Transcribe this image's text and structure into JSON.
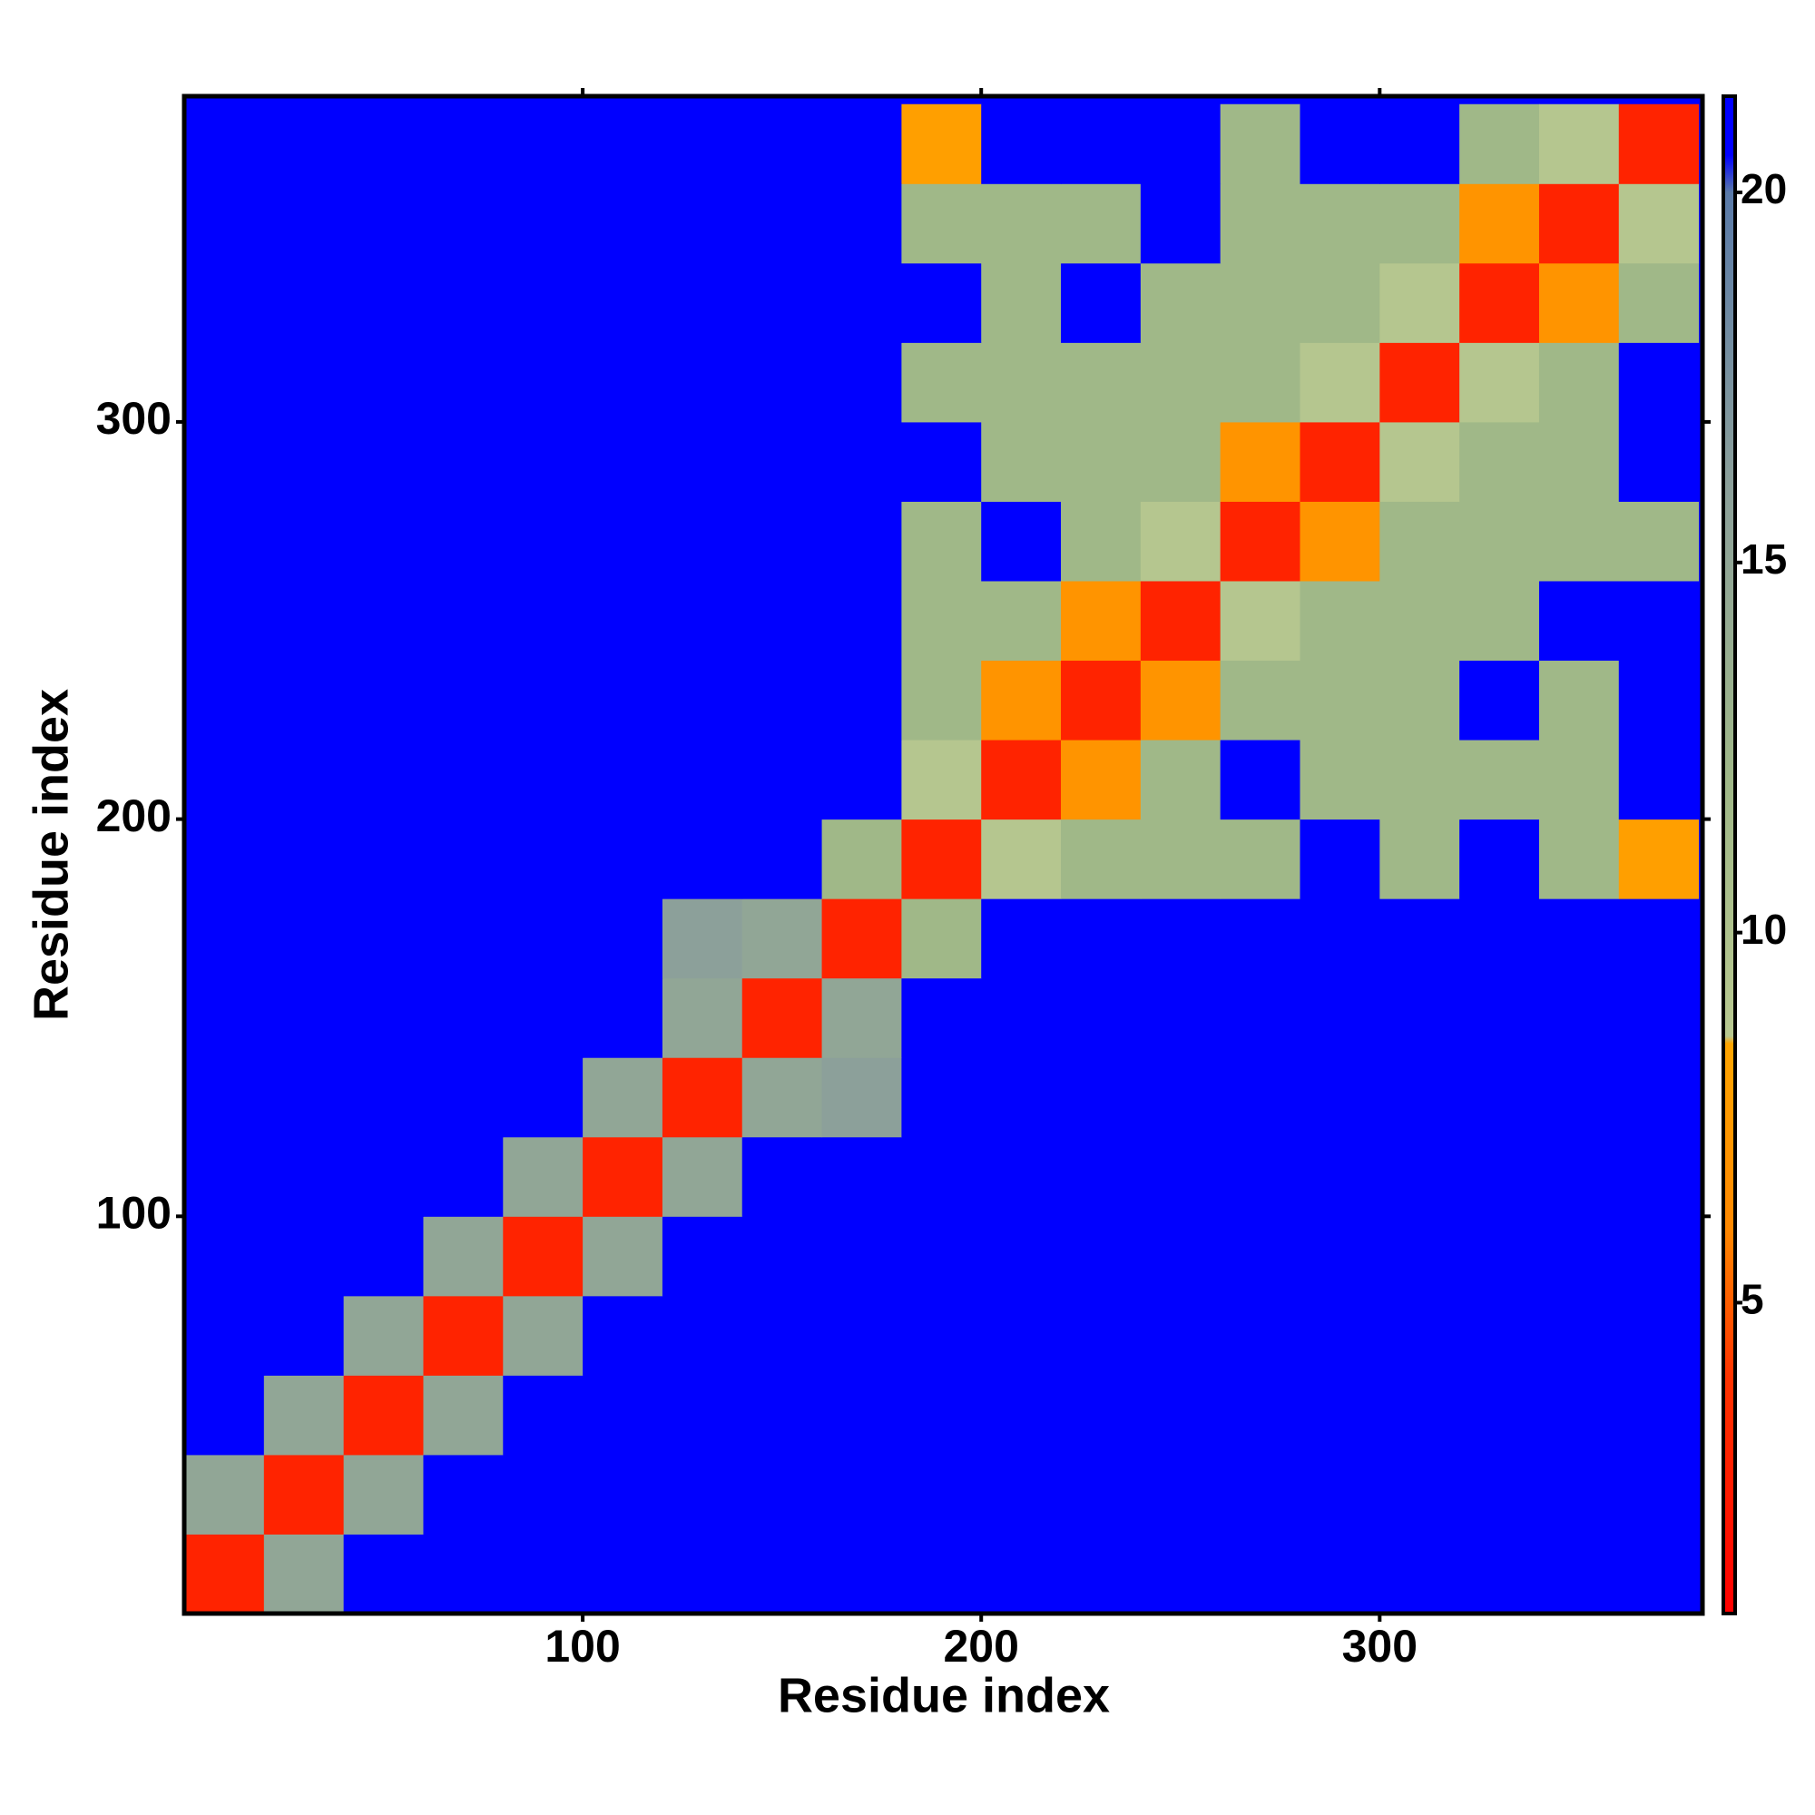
{
  "chart_data": {
    "type": "heatmap",
    "x_label": "Residue index",
    "y_label": "Residue index",
    "x_bins": [
      0,
      20,
      40,
      60,
      80,
      100,
      120,
      140,
      160,
      180,
      200,
      220,
      240,
      260,
      280,
      300,
      320,
      340,
      360,
      380
    ],
    "y_bins": [
      0,
      20,
      40,
      60,
      80,
      100,
      120,
      140,
      160,
      180,
      200,
      220,
      240,
      260,
      280,
      300,
      320,
      340,
      360,
      380
    ],
    "xlim": [
      0,
      381
    ],
    "ylim": [
      0,
      382
    ],
    "xticks": [
      100,
      200,
      300
    ],
    "yticks": [
      100,
      200,
      300
    ],
    "z": [
      [
        3,
        15,
        21,
        21,
        21,
        21,
        21,
        21,
        21,
        21,
        21,
        21,
        21,
        21,
        21,
        21,
        21,
        21,
        21
      ],
      [
        15,
        3,
        15,
        21,
        21,
        21,
        21,
        21,
        21,
        21,
        21,
        21,
        21,
        21,
        21,
        21,
        21,
        21,
        21
      ],
      [
        21,
        15,
        3,
        15,
        21,
        21,
        21,
        21,
        21,
        21,
        21,
        21,
        21,
        21,
        21,
        21,
        21,
        21,
        21
      ],
      [
        21,
        21,
        15,
        3,
        15,
        21,
        21,
        21,
        21,
        21,
        21,
        21,
        21,
        21,
        21,
        21,
        21,
        21,
        21
      ],
      [
        21,
        21,
        21,
        15,
        3,
        15,
        21,
        21,
        21,
        21,
        21,
        21,
        21,
        21,
        21,
        21,
        21,
        21,
        21
      ],
      [
        21,
        21,
        21,
        21,
        15,
        3,
        15,
        21,
        21,
        21,
        21,
        21,
        21,
        21,
        21,
        21,
        21,
        21,
        21
      ],
      [
        21,
        21,
        21,
        21,
        21,
        15,
        3,
        15,
        16,
        21,
        21,
        21,
        21,
        21,
        21,
        21,
        21,
        21,
        21
      ],
      [
        21,
        21,
        21,
        21,
        21,
        21,
        15,
        3,
        15,
        21,
        21,
        21,
        21,
        21,
        21,
        21,
        21,
        21,
        21
      ],
      [
        21,
        21,
        21,
        21,
        21,
        21,
        16,
        15,
        3,
        12,
        21,
        21,
        21,
        21,
        21,
        21,
        21,
        21,
        21
      ],
      [
        21,
        21,
        21,
        21,
        21,
        21,
        21,
        21,
        12,
        3,
        9,
        12,
        12,
        12,
        21,
        12,
        21,
        12,
        8
      ],
      [
        21,
        21,
        21,
        21,
        21,
        21,
        21,
        21,
        21,
        9,
        3,
        7,
        12,
        21,
        12,
        12,
        12,
        12,
        21
      ],
      [
        21,
        21,
        21,
        21,
        21,
        21,
        21,
        21,
        21,
        12,
        7,
        3,
        7,
        12,
        12,
        12,
        21,
        12,
        21
      ],
      [
        21,
        21,
        21,
        21,
        21,
        21,
        21,
        21,
        21,
        12,
        12,
        7,
        3,
        9,
        12,
        12,
        12,
        21,
        21
      ],
      [
        21,
        21,
        21,
        21,
        21,
        21,
        21,
        21,
        21,
        12,
        21,
        12,
        9,
        3,
        7,
        12,
        12,
        12,
        12
      ],
      [
        21,
        21,
        21,
        21,
        21,
        21,
        21,
        21,
        21,
        21,
        12,
        12,
        12,
        7,
        3,
        9,
        12,
        12,
        21
      ],
      [
        21,
        21,
        21,
        21,
        21,
        21,
        21,
        21,
        21,
        12,
        12,
        12,
        12,
        12,
        9,
        3,
        9,
        12,
        21
      ],
      [
        21,
        21,
        21,
        21,
        21,
        21,
        21,
        21,
        21,
        21,
        12,
        21,
        12,
        12,
        12,
        9,
        3,
        7,
        12
      ],
      [
        21,
        21,
        21,
        21,
        21,
        21,
        21,
        21,
        21,
        12,
        12,
        12,
        21,
        12,
        12,
        12,
        7,
        3,
        9
      ],
      [
        21,
        21,
        21,
        21,
        21,
        21,
        21,
        21,
        21,
        8,
        21,
        21,
        21,
        12,
        21,
        21,
        12,
        9,
        3
      ]
    ],
    "colorbar": {
      "lim": [
        0.8,
        21.3
      ],
      "ticks": [
        5,
        10,
        15,
        20
      ],
      "stops": [
        {
          "value": 0.8,
          "color": "#ff0000"
        },
        {
          "value": 4,
          "color": "#ff3300"
        },
        {
          "value": 6,
          "color": "#ff8800"
        },
        {
          "value": 8.5,
          "color": "#ffa500"
        },
        {
          "value": 8.6,
          "color": "#b8c890"
        },
        {
          "value": 12,
          "color": "#a0b888"
        },
        {
          "value": 16,
          "color": "#8ca09a"
        },
        {
          "value": 20,
          "color": "#5a7aa8"
        },
        {
          "value": 20.5,
          "color": "#0000ff"
        },
        {
          "value": 21.3,
          "color": "#0000ff"
        }
      ]
    }
  }
}
